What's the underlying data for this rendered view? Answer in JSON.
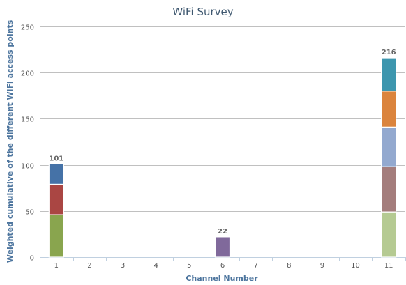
{
  "chart_data": {
    "type": "bar",
    "stacked": true,
    "title": "WiFi Survey",
    "xlabel": "Channel Number",
    "ylabel": "Weighted cumulative of the different WiFi access points",
    "categories": [
      "1",
      "2",
      "3",
      "4",
      "5",
      "6",
      "7",
      "8",
      "9",
      "10",
      "11"
    ],
    "ylim": [
      0,
      250
    ],
    "yticks": [
      0,
      50,
      100,
      150,
      200,
      250
    ],
    "grid": true,
    "legend": "none",
    "stacks": [
      {
        "category": "1",
        "total_label": "101",
        "segments": [
          {
            "value": 46,
            "color": "#89a54e"
          },
          {
            "value": 33,
            "color": "#aa4643"
          },
          {
            "value": 22,
            "color": "#4572a7"
          }
        ]
      },
      {
        "category": "6",
        "total_label": "22",
        "segments": [
          {
            "value": 22,
            "color": "#80699b"
          }
        ]
      },
      {
        "category": "11",
        "total_label": "216",
        "segments": [
          {
            "value": 49,
            "color": "#b5ca92"
          },
          {
            "value": 49,
            "color": "#a47d7c"
          },
          {
            "value": 43,
            "color": "#93a9cf"
          },
          {
            "value": 39,
            "color": "#db843d"
          },
          {
            "value": 36,
            "color": "#3d96ae"
          }
        ]
      }
    ]
  }
}
